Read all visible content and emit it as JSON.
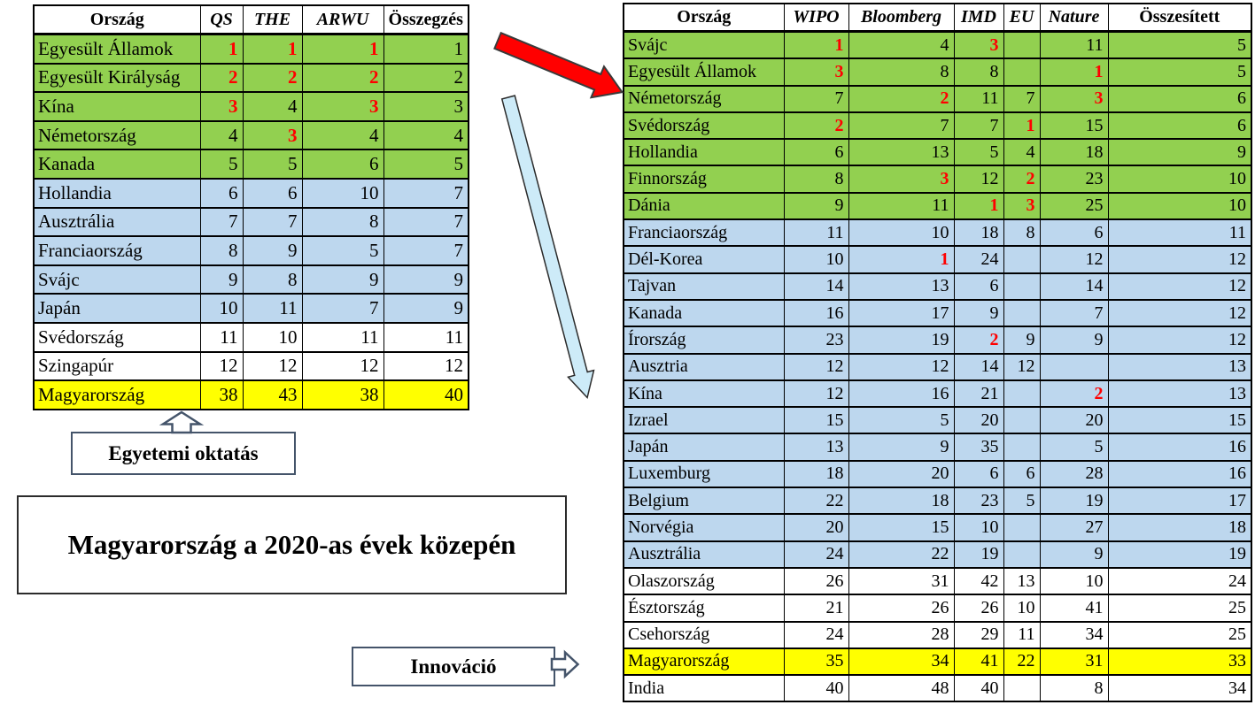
{
  "colors": {
    "row_green": "#92D050",
    "row_blue": "#BDD7EE",
    "row_yellow": "#FFFF00",
    "highlight_red": "#FF0000",
    "red_arrow_fill": "#FF0000",
    "blue_arrow_fill": "#CDEBF8",
    "shape_border": "#44546A",
    "table_border": "#000000"
  },
  "left_table": {
    "headers": [
      "Ország",
      "QS",
      "THE",
      "ARWU",
      "Összegzés"
    ],
    "rows": [
      {
        "country": "Egyesült Államok",
        "values": [
          "1",
          "1",
          "1",
          "1"
        ],
        "red": [
          0,
          1,
          2
        ],
        "bg": "green"
      },
      {
        "country": "Egyesült Királyság",
        "values": [
          "2",
          "2",
          "2",
          "2"
        ],
        "red": [
          0,
          1,
          2
        ],
        "bg": "green"
      },
      {
        "country": "Kína",
        "values": [
          "3",
          "4",
          "3",
          "3"
        ],
        "red": [
          0,
          2
        ],
        "bg": "green"
      },
      {
        "country": "Németország",
        "values": [
          "4",
          "3",
          "4",
          "4"
        ],
        "red": [
          1
        ],
        "bg": "green"
      },
      {
        "country": "Kanada",
        "values": [
          "5",
          "5",
          "6",
          "5"
        ],
        "red": [],
        "bg": "green"
      },
      {
        "country": "Hollandia",
        "values": [
          "6",
          "6",
          "10",
          "7"
        ],
        "red": [],
        "bg": "blue"
      },
      {
        "country": "Ausztrália",
        "values": [
          "7",
          "7",
          "8",
          "7"
        ],
        "red": [],
        "bg": "blue"
      },
      {
        "country": "Franciaország",
        "values": [
          "8",
          "9",
          "5",
          "7"
        ],
        "red": [],
        "bg": "blue"
      },
      {
        "country": "Svájc",
        "values": [
          "9",
          "8",
          "9",
          "9"
        ],
        "red": [],
        "bg": "blue"
      },
      {
        "country": "Japán",
        "values": [
          "10",
          "11",
          "7",
          "9"
        ],
        "red": [],
        "bg": "blue"
      },
      {
        "country": "Svédország",
        "values": [
          "11",
          "10",
          "11",
          "11"
        ],
        "red": [],
        "bg": "white"
      },
      {
        "country": "Szingapúr",
        "values": [
          "12",
          "12",
          "12",
          "12"
        ],
        "red": [],
        "bg": "white"
      },
      {
        "country": "Magyarország",
        "values": [
          "38",
          "43",
          "38",
          "40"
        ],
        "red": [],
        "bg": "yellow"
      }
    ]
  },
  "right_table": {
    "headers": [
      "Ország",
      "WIPO",
      "Bloomberg",
      "IMD",
      "EU",
      "Nature",
      "Összesített"
    ],
    "rows": [
      {
        "country": "Svájc",
        "values": [
          "1",
          "4",
          "3",
          "",
          "11",
          "5"
        ],
        "red": [
          0,
          2
        ],
        "bg": "green"
      },
      {
        "country": "Egyesült Államok",
        "values": [
          "3",
          "8",
          "8",
          "",
          "1",
          "5"
        ],
        "red": [
          0,
          4
        ],
        "bg": "green"
      },
      {
        "country": "Németország",
        "values": [
          "7",
          "2",
          "11",
          "7",
          "3",
          "6"
        ],
        "red": [
          1,
          4
        ],
        "bg": "green"
      },
      {
        "country": "Svédország",
        "values": [
          "2",
          "7",
          "7",
          "1",
          "15",
          "6"
        ],
        "red": [
          0,
          3
        ],
        "bg": "green"
      },
      {
        "country": "Hollandia",
        "values": [
          "6",
          "13",
          "5",
          "4",
          "18",
          "9"
        ],
        "red": [],
        "bg": "green"
      },
      {
        "country": "Finnország",
        "values": [
          "8",
          "3",
          "12",
          "2",
          "23",
          "10"
        ],
        "red": [
          1,
          3
        ],
        "bg": "green"
      },
      {
        "country": "Dánia",
        "values": [
          "9",
          "11",
          "1",
          "3",
          "25",
          "10"
        ],
        "red": [
          2,
          3
        ],
        "bg": "green"
      },
      {
        "country": "Franciaország",
        "values": [
          "11",
          "10",
          "18",
          "8",
          "6",
          "11"
        ],
        "red": [],
        "bg": "blue"
      },
      {
        "country": "Dél-Korea",
        "values": [
          "10",
          "1",
          "24",
          "",
          "12",
          "12"
        ],
        "red": [
          1
        ],
        "bg": "blue"
      },
      {
        "country": "Tajvan",
        "values": [
          "14",
          "13",
          "6",
          "",
          "14",
          "12"
        ],
        "red": [],
        "bg": "blue"
      },
      {
        "country": "Kanada",
        "values": [
          "16",
          "17",
          "9",
          "",
          "7",
          "12"
        ],
        "red": [],
        "bg": "blue"
      },
      {
        "country": "Írország",
        "values": [
          "23",
          "19",
          "2",
          "9",
          "9",
          "12"
        ],
        "red": [
          2
        ],
        "bg": "blue"
      },
      {
        "country": "Ausztria",
        "values": [
          "12",
          "12",
          "14",
          "12",
          "",
          "13"
        ],
        "red": [],
        "bg": "blue"
      },
      {
        "country": "Kína",
        "values": [
          "12",
          "16",
          "21",
          "",
          "2",
          "13"
        ],
        "red": [
          4
        ],
        "bg": "blue"
      },
      {
        "country": "Izrael",
        "values": [
          "15",
          "5",
          "20",
          "",
          "20",
          "15"
        ],
        "red": [],
        "bg": "blue"
      },
      {
        "country": "Japán",
        "values": [
          "13",
          "9",
          "35",
          "",
          "5",
          "16"
        ],
        "red": [],
        "bg": "blue"
      },
      {
        "country": "Luxemburg",
        "values": [
          "18",
          "20",
          "6",
          "6",
          "28",
          "16"
        ],
        "red": [],
        "bg": "blue"
      },
      {
        "country": "Belgium",
        "values": [
          "22",
          "18",
          "23",
          "5",
          "19",
          "17"
        ],
        "red": [],
        "bg": "blue"
      },
      {
        "country": "Norvégia",
        "values": [
          "20",
          "15",
          "10",
          "",
          "27",
          "18"
        ],
        "red": [],
        "bg": "blue"
      },
      {
        "country": "Ausztrália",
        "values": [
          "24",
          "22",
          "19",
          "",
          "9",
          "19"
        ],
        "red": [],
        "bg": "blue"
      },
      {
        "country": "Olaszország",
        "values": [
          "26",
          "31",
          "42",
          "13",
          "10",
          "24"
        ],
        "red": [],
        "bg": "white"
      },
      {
        "country": "Észtország",
        "values": [
          "21",
          "26",
          "26",
          "10",
          "41",
          "25"
        ],
        "red": [],
        "bg": "white"
      },
      {
        "country": "Csehország",
        "values": [
          "24",
          "28",
          "29",
          "11",
          "34",
          "25"
        ],
        "red": [],
        "bg": "white"
      },
      {
        "country": "Magyarország",
        "values": [
          "35",
          "34",
          "41",
          "22",
          "31",
          "33"
        ],
        "red": [],
        "bg": "yellow"
      },
      {
        "country": "India",
        "values": [
          "40",
          "48",
          "40",
          "",
          "8",
          "34"
        ],
        "red": [],
        "bg": "white"
      }
    ]
  },
  "callouts": {
    "education_label": "Egyetemi oktatás",
    "innovation_label": "Innováció",
    "main_title": "Magyarország a 2020-as évek közepén"
  }
}
